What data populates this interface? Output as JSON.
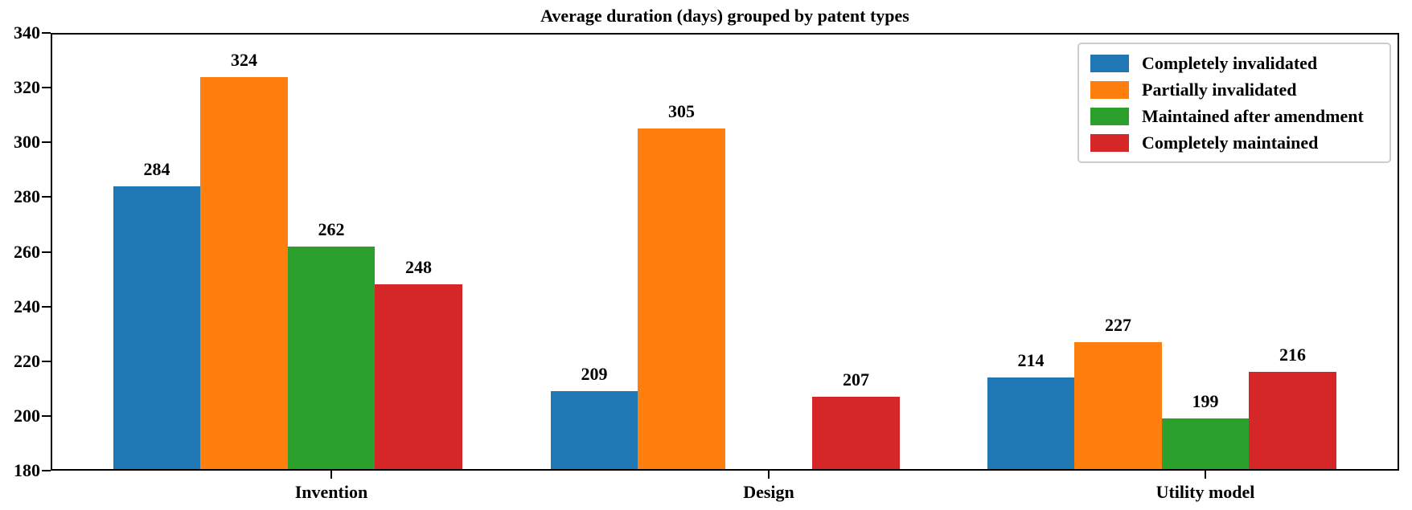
{
  "chart_data": {
    "type": "bar",
    "title": "Average duration (days) grouped by patent types",
    "categories": [
      "Invention",
      "Design",
      "Utility model"
    ],
    "series": [
      {
        "name": "Completely invalidated",
        "color": "#1f77b4",
        "values": [
          284,
          209,
          214
        ]
      },
      {
        "name": "Partially invalidated",
        "color": "#ff7f0e",
        "values": [
          324,
          305,
          227
        ]
      },
      {
        "name": "Maintained after amendment",
        "color": "#2ca02c",
        "values": [
          262,
          null,
          199
        ]
      },
      {
        "name": "Completely maintained",
        "color": "#d62728",
        "values": [
          248,
          207,
          216
        ]
      }
    ],
    "ylim": [
      180,
      340
    ],
    "yticks": [
      180,
      200,
      220,
      240,
      260,
      280,
      300,
      320,
      340
    ],
    "xlabel": "",
    "ylabel": "",
    "grid": false,
    "legend_position": "upper right",
    "axis_color": "#000000",
    "legend_border_color": "#cccccc",
    "background_color": "#ffffff"
  }
}
